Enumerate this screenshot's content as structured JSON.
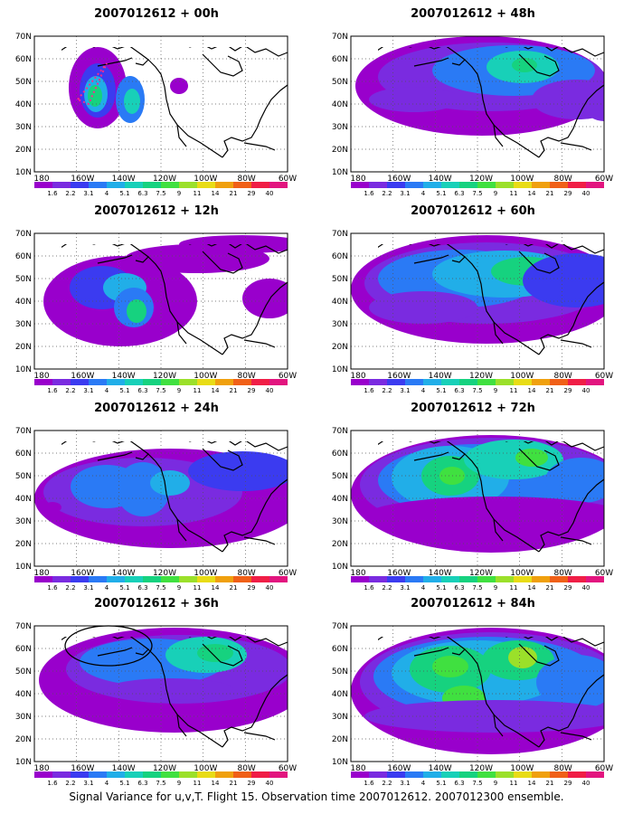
{
  "colorbar": {
    "levels": [
      "1.6",
      "2.2",
      "3.1",
      "4",
      "5.1",
      "6.3",
      "7.5",
      "9",
      "11",
      "14",
      "21",
      "29",
      "40"
    ],
    "colors": [
      "#9900cc",
      "#7a2be0",
      "#3b3bf0",
      "#2a7af5",
      "#21aee8",
      "#18d0b8",
      "#16d27f",
      "#40e040",
      "#9be02a",
      "#e8dc16",
      "#f0a00e",
      "#f06018",
      "#f01e46",
      "#e2157f"
    ]
  },
  "axes": {
    "lon_labels": [
      "180",
      "160W",
      "140W",
      "120W",
      "100W",
      "80W",
      "60W"
    ],
    "lat_labels": [
      "10N",
      "20N",
      "30N",
      "40N",
      "50N",
      "60N",
      "70N"
    ]
  },
  "panels": [
    {
      "id": "p00",
      "title": "2007012612 + 00h"
    },
    {
      "id": "p12",
      "title": "2007012612 + 12h"
    },
    {
      "id": "p24",
      "title": "2007012612 + 24h"
    },
    {
      "id": "p36",
      "title": "2007012612 + 36h"
    },
    {
      "id": "p48",
      "title": "2007012612 + 48h"
    },
    {
      "id": "p60",
      "title": "2007012612 + 60h"
    },
    {
      "id": "p72",
      "title": "2007012612 + 72h"
    },
    {
      "id": "p84",
      "title": "2007012612 + 84h"
    }
  ],
  "caption": "Signal Variance for u,v,T. Flight 15. Observation time 2007012612. 2007012300 ensemble."
}
